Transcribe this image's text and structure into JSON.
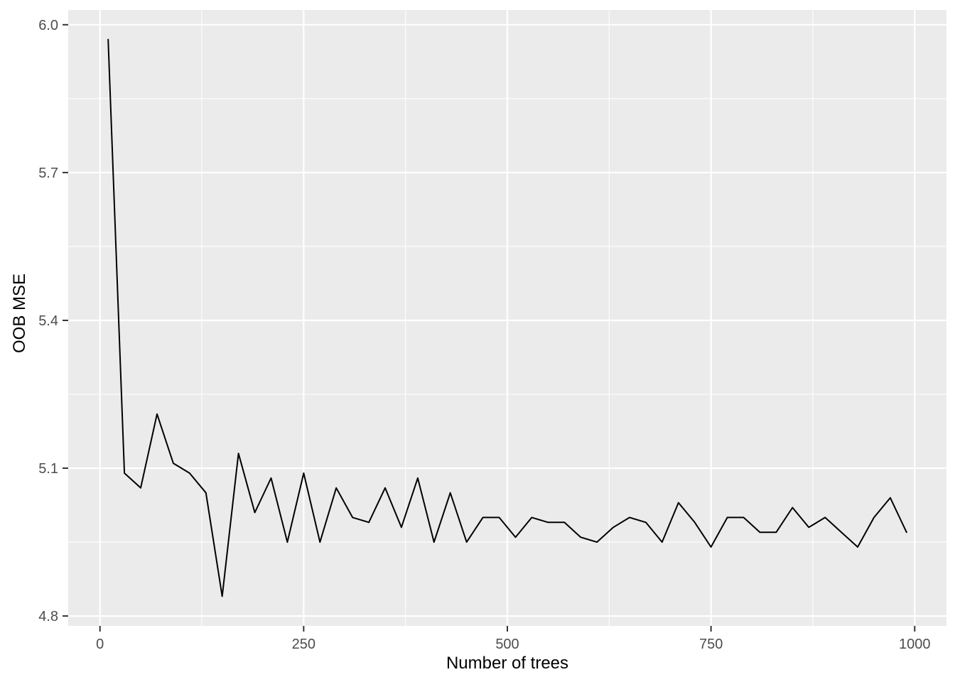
{
  "chart_data": {
    "type": "line",
    "title": "",
    "xlabel": "Number of trees",
    "ylabel": "OOB MSE",
    "x": [
      10,
      30,
      50,
      70,
      90,
      110,
      130,
      150,
      170,
      190,
      210,
      230,
      250,
      270,
      290,
      310,
      330,
      350,
      370,
      390,
      410,
      430,
      450,
      470,
      490,
      510,
      530,
      550,
      570,
      590,
      610,
      630,
      650,
      670,
      690,
      710,
      730,
      750,
      770,
      790,
      810,
      830,
      850,
      870,
      890,
      910,
      930,
      950,
      970,
      990
    ],
    "values": [
      5.97,
      5.09,
      5.06,
      5.21,
      5.11,
      5.09,
      5.05,
      4.84,
      5.13,
      5.01,
      5.08,
      4.95,
      5.09,
      4.95,
      5.06,
      5.0,
      4.99,
      5.06,
      4.98,
      5.08,
      4.95,
      5.05,
      4.95,
      5.0,
      5.0,
      4.96,
      5.0,
      4.99,
      4.99,
      4.96,
      4.95,
      4.98,
      5.0,
      4.99,
      4.95,
      5.03,
      4.99,
      4.94,
      5.0,
      5.0,
      4.97,
      4.97,
      5.02,
      4.98,
      5.0,
      4.97,
      4.94,
      5.0,
      5.04,
      4.97
    ],
    "xlim": [
      -39,
      1039
    ],
    "ylim": [
      4.78,
      6.03
    ],
    "x_ticks": [
      0,
      250,
      500,
      750,
      1000
    ],
    "x_tick_labels": [
      "0",
      "250",
      "500",
      "750",
      "1000"
    ],
    "y_ticks": [
      4.8,
      5.1,
      5.4,
      5.7,
      6.0
    ],
    "y_tick_labels": [
      "4.8",
      "5.1",
      "5.4",
      "5.7",
      "6.0"
    ],
    "x_minor_ticks": [
      125,
      375,
      625,
      875
    ],
    "y_minor_ticks": [
      4.95,
      5.25,
      5.55,
      5.85
    ],
    "grid": true,
    "legend": "none",
    "colors": {
      "panel_background": "#EBEBEB",
      "grid_major": "#FFFFFF",
      "grid_minor": "#FFFFFF",
      "line": "#000000",
      "tick_mark": "#333333",
      "tick_label": "#4D4D4D",
      "axis_title": "#000000",
      "figure_background": "#FFFFFF"
    }
  }
}
